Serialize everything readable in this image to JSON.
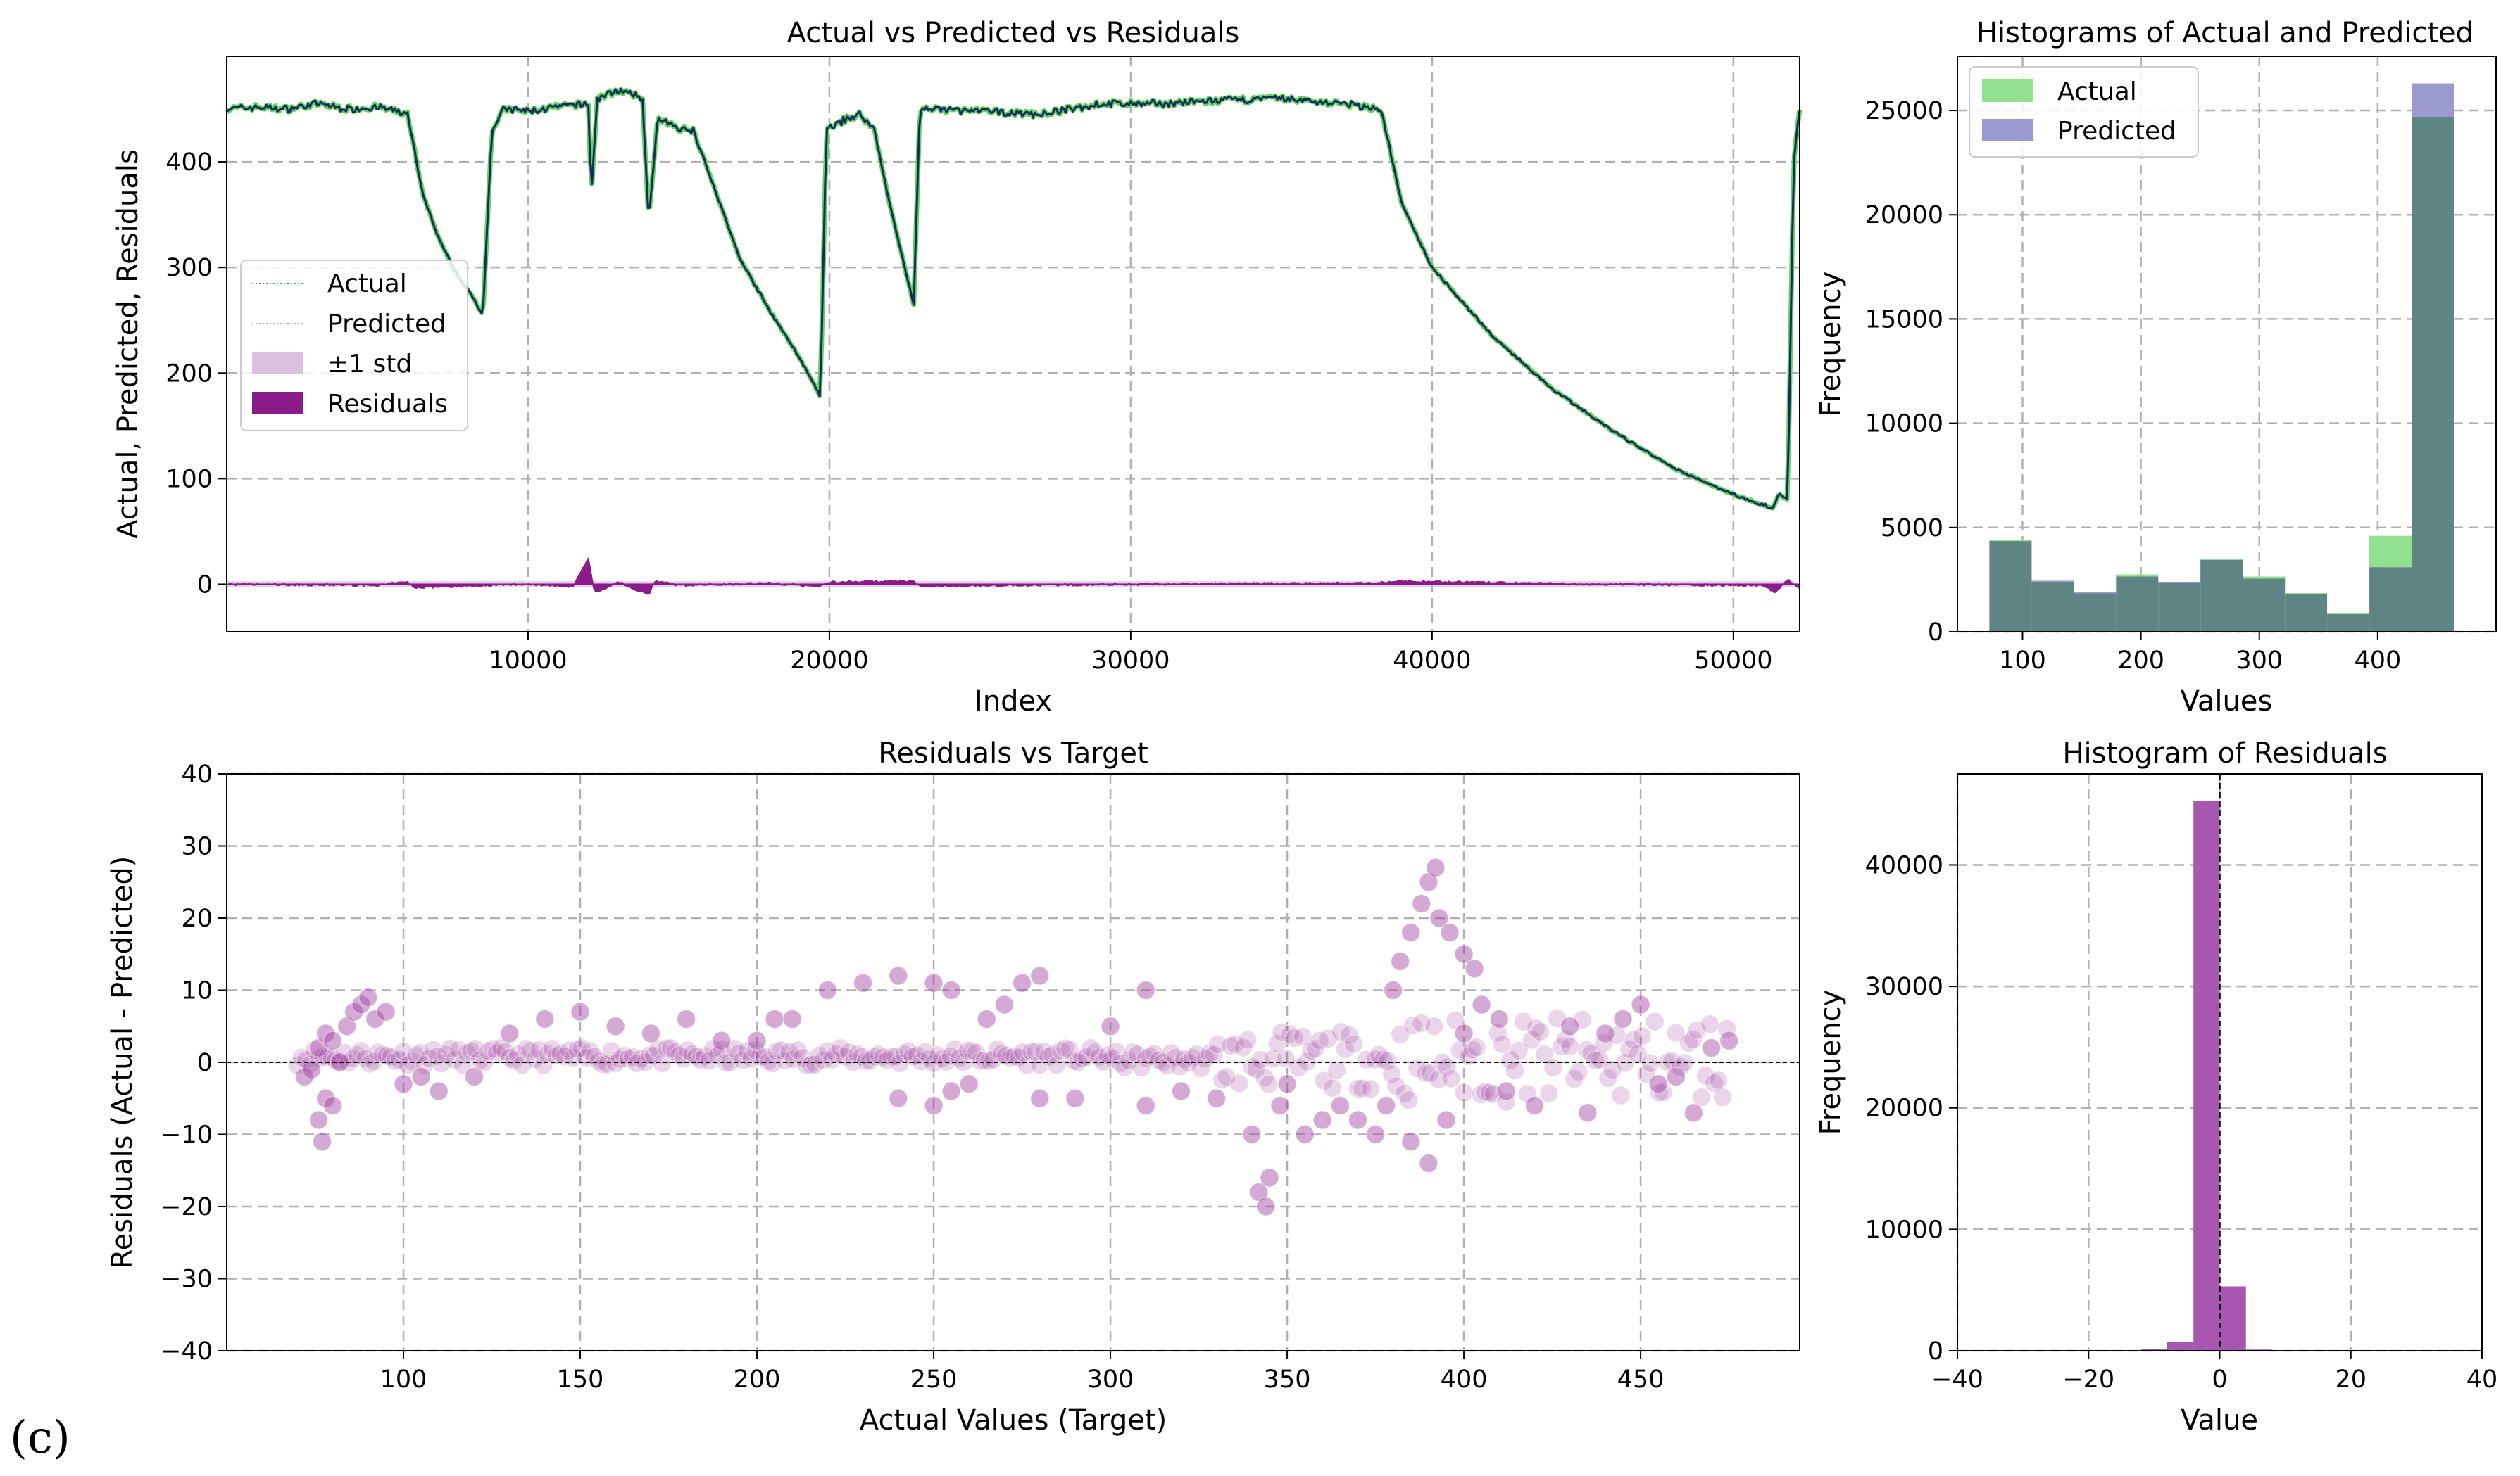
{
  "panel_label": "(c)",
  "colors": {
    "actual_line": "#1f6b3a",
    "predicted_line": "#1a2a5c",
    "actual_hist": "#90e090",
    "predicted_hist": "#9a9ad0",
    "overlap_hist": "#5e8484",
    "residual": "#8b1a8b",
    "std_band": "#dcc0e0",
    "scatter": "#a040a0",
    "resid_hist": "#a857b0"
  },
  "chart_data": [
    {
      "id": "ts",
      "type": "line",
      "title": "Actual vs Predicted vs Residuals",
      "xlabel": "Index",
      "ylabel": "Actual, Predicted, Residuals",
      "xlim": [
        0,
        52200
      ],
      "ylim": [
        -45,
        500
      ],
      "xticks": [
        10000,
        20000,
        30000,
        40000,
        50000
      ],
      "yticks": [
        0,
        100,
        200,
        300,
        400
      ],
      "legend": [
        "Actual",
        "Predicted",
        "±1 std",
        "Residuals"
      ],
      "legend_position": "center-left",
      "actual_keypoints": [
        [
          0,
          450
        ],
        [
          1000,
          452
        ],
        [
          2000,
          450
        ],
        [
          3000,
          455
        ],
        [
          4000,
          450
        ],
        [
          5000,
          452
        ],
        [
          6000,
          445
        ],
        [
          6500,
          370
        ],
        [
          7000,
          330
        ],
        [
          7500,
          300
        ],
        [
          8200,
          270
        ],
        [
          8500,
          255
        ],
        [
          8800,
          430
        ],
        [
          9200,
          450
        ],
        [
          10000,
          448
        ],
        [
          11000,
          452
        ],
        [
          12000,
          455
        ],
        [
          12100,
          370
        ],
        [
          12300,
          460
        ],
        [
          13000,
          468
        ],
        [
          13800,
          460
        ],
        [
          14000,
          345
        ],
        [
          14300,
          440
        ],
        [
          15000,
          432
        ],
        [
          15500,
          430
        ],
        [
          16000,
          390
        ],
        [
          17000,
          310
        ],
        [
          18000,
          260
        ],
        [
          19000,
          215
        ],
        [
          19700,
          178
        ],
        [
          19900,
          430
        ],
        [
          20500,
          440
        ],
        [
          21000,
          445
        ],
        [
          21500,
          430
        ],
        [
          22000,
          360
        ],
        [
          22500,
          300
        ],
        [
          22800,
          265
        ],
        [
          23000,
          450
        ],
        [
          25000,
          448
        ],
        [
          27000,
          445
        ],
        [
          29000,
          455
        ],
        [
          31000,
          455
        ],
        [
          33000,
          458
        ],
        [
          35000,
          460
        ],
        [
          37000,
          455
        ],
        [
          38300,
          450
        ],
        [
          39000,
          360
        ],
        [
          40000,
          300
        ],
        [
          42000,
          235
        ],
        [
          44000,
          185
        ],
        [
          46000,
          145
        ],
        [
          48000,
          110
        ],
        [
          50000,
          85
        ],
        [
          51300,
          72
        ],
        [
          51500,
          85
        ],
        [
          51800,
          80
        ],
        [
          52000,
          400
        ],
        [
          52200,
          450
        ]
      ],
      "residual_keypoints": [
        [
          0,
          0
        ],
        [
          5000,
          -1
        ],
        [
          6000,
          2
        ],
        [
          6200,
          -3
        ],
        [
          10000,
          0
        ],
        [
          11500,
          -2
        ],
        [
          12000,
          25
        ],
        [
          12200,
          -8
        ],
        [
          13000,
          2
        ],
        [
          14000,
          -10
        ],
        [
          14200,
          3
        ],
        [
          15000,
          -1
        ],
        [
          18000,
          1
        ],
        [
          19700,
          -2
        ],
        [
          20000,
          2
        ],
        [
          22800,
          3
        ],
        [
          23000,
          -2
        ],
        [
          30000,
          0
        ],
        [
          38000,
          1
        ],
        [
          39000,
          3
        ],
        [
          45000,
          0
        ],
        [
          51000,
          -1
        ],
        [
          51400,
          -8
        ],
        [
          51800,
          5
        ],
        [
          52200,
          -5
        ]
      ],
      "residual_std": 3
    },
    {
      "id": "hist_ap",
      "type": "bar",
      "title": "Histograms of Actual and Predicted",
      "xlabel": "Values",
      "ylabel": "Frequency",
      "xlim": [
        45,
        500
      ],
      "ylim": [
        0,
        27600
      ],
      "xticks": [
        100,
        200,
        300,
        400
      ],
      "yticks": [
        0,
        5000,
        10000,
        15000,
        20000,
        25000
      ],
      "legend_position": "upper-left",
      "bin_edges": [
        72,
        107.7,
        143.3,
        179,
        214.7,
        250.3,
        286,
        321.7,
        357.3,
        393,
        428.7,
        464.3
      ],
      "series": [
        {
          "name": "Actual",
          "values": [
            4400,
            2400,
            1850,
            2750,
            2350,
            3500,
            2650,
            1850,
            880,
            4600,
            24700
          ]
        },
        {
          "name": "Predicted",
          "values": [
            4350,
            2450,
            1900,
            2650,
            2400,
            3450,
            2550,
            1800,
            850,
            3100,
            26300
          ]
        }
      ]
    },
    {
      "id": "scatter",
      "type": "scatter",
      "title": "Residuals vs Target",
      "xlabel": "Actual Values (Target)",
      "ylabel": "Residuals (Actual - Predicted)",
      "xlim": [
        50,
        495
      ],
      "ylim": [
        -40,
        40
      ],
      "xticks": [
        100,
        150,
        200,
        250,
        300,
        350,
        400,
        450
      ],
      "yticks": [
        -40,
        -30,
        -20,
        -10,
        0,
        10,
        20,
        30,
        40
      ],
      "reference_line_y": 0,
      "points_sample": [
        [
          72,
          -2
        ],
        [
          74,
          -1
        ],
        [
          76,
          -8
        ],
        [
          76,
          2
        ],
        [
          77,
          -11
        ],
        [
          78,
          4
        ],
        [
          78,
          -5
        ],
        [
          80,
          3
        ],
        [
          80,
          -6
        ],
        [
          82,
          0
        ],
        [
          84,
          5
        ],
        [
          86,
          7
        ],
        [
          88,
          8
        ],
        [
          90,
          9
        ],
        [
          92,
          6
        ],
        [
          95,
          7
        ],
        [
          100,
          -3
        ],
        [
          105,
          -2
        ],
        [
          110,
          -4
        ],
        [
          120,
          -2
        ],
        [
          130,
          4
        ],
        [
          140,
          6
        ],
        [
          150,
          7
        ],
        [
          160,
          5
        ],
        [
          170,
          4
        ],
        [
          180,
          6
        ],
        [
          190,
          3
        ],
        [
          200,
          3
        ],
        [
          205,
          6
        ],
        [
          210,
          6
        ],
        [
          220,
          10
        ],
        [
          230,
          11
        ],
        [
          240,
          12
        ],
        [
          250,
          11
        ],
        [
          255,
          10
        ],
        [
          240,
          -5
        ],
        [
          250,
          -6
        ],
        [
          255,
          -4
        ],
        [
          260,
          -3
        ],
        [
          265,
          6
        ],
        [
          270,
          8
        ],
        [
          275,
          11
        ],
        [
          280,
          12
        ],
        [
          280,
          -5
        ],
        [
          290,
          -5
        ],
        [
          300,
          5
        ],
        [
          310,
          10
        ],
        [
          310,
          -6
        ],
        [
          320,
          -4
        ],
        [
          330,
          -5
        ],
        [
          340,
          -10
        ],
        [
          342,
          -18
        ],
        [
          344,
          -20
        ],
        [
          345,
          -16
        ],
        [
          348,
          -6
        ],
        [
          350,
          -3
        ],
        [
          355,
          -10
        ],
        [
          360,
          -8
        ],
        [
          365,
          -6
        ],
        [
          370,
          -8
        ],
        [
          375,
          -10
        ],
        [
          378,
          -6
        ],
        [
          380,
          10
        ],
        [
          382,
          14
        ],
        [
          385,
          18
        ],
        [
          388,
          22
        ],
        [
          390,
          25
        ],
        [
          392,
          27
        ],
        [
          393,
          20
        ],
        [
          396,
          18
        ],
        [
          400,
          15
        ],
        [
          403,
          13
        ],
        [
          385,
          -11
        ],
        [
          390,
          -14
        ],
        [
          395,
          -8
        ],
        [
          400,
          4
        ],
        [
          405,
          8
        ],
        [
          410,
          6
        ],
        [
          412,
          -4
        ],
        [
          420,
          -6
        ],
        [
          430,
          5
        ],
        [
          435,
          -7
        ],
        [
          440,
          4
        ],
        [
          445,
          6
        ],
        [
          450,
          8
        ],
        [
          455,
          -3
        ],
        [
          460,
          -2
        ],
        [
          465,
          -7
        ],
        [
          470,
          2
        ],
        [
          475,
          3
        ]
      ]
    },
    {
      "id": "hist_res",
      "type": "bar",
      "title": "Histogram of Residuals",
      "xlabel": "Value",
      "ylabel": "Frequency",
      "xlim": [
        -40,
        40
      ],
      "ylim": [
        0,
        47500
      ],
      "xticks": [
        -40,
        -20,
        0,
        20,
        40
      ],
      "yticks": [
        0,
        10000,
        20000,
        30000,
        40000
      ],
      "reference_line_x": 0,
      "bin_edges": [
        -12,
        -8,
        -4,
        0,
        4,
        8,
        12
      ],
      "values": [
        150,
        700,
        45300,
        5300,
        100,
        50
      ]
    }
  ]
}
